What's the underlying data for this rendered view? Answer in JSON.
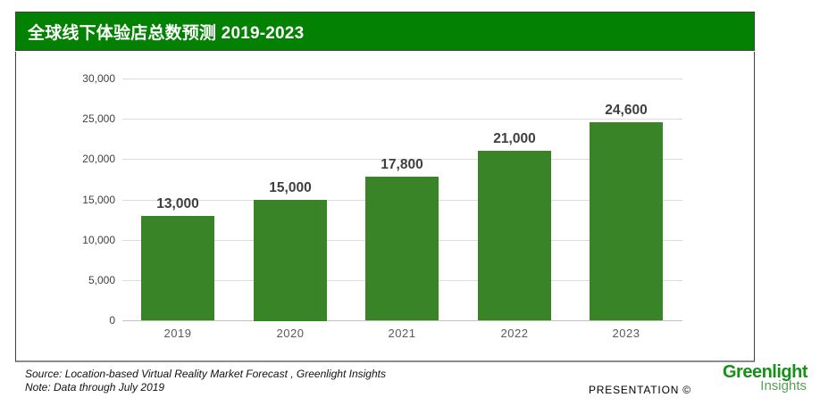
{
  "header": {
    "title": "全球线下体验店总数预测 2019-2023",
    "bg_color": "#028102"
  },
  "chart_data": {
    "type": "bar",
    "title": "全球线下体验店总数预测 2019-2023",
    "categories": [
      "2019",
      "2020",
      "2021",
      "2022",
      "2023"
    ],
    "values": [
      13000,
      15000,
      17800,
      21000,
      24600
    ],
    "value_labels": [
      "13,000",
      "15,000",
      "17,800",
      "21,000",
      "24,600"
    ],
    "xlabel": "",
    "ylabel": "",
    "ylim": [
      0,
      30000
    ],
    "ytick_step": 5000,
    "ytick_labels": [
      "0",
      "5,000",
      "10,000",
      "15,000",
      "20,000",
      "25,000",
      "30,000"
    ],
    "grid": true,
    "legend": "none",
    "bar_color": "#388426"
  },
  "footer": {
    "source_line1": "Source: Location-based Virtual Reality Market Forecast , Greenlight Insights",
    "source_line2": "Note: Data through July 2019",
    "presentation_label": "PRESENTATION ©",
    "logo": {
      "line1": "Greenlight",
      "line2": "Insights",
      "color1": "#169016",
      "color2": "#55a055"
    }
  }
}
